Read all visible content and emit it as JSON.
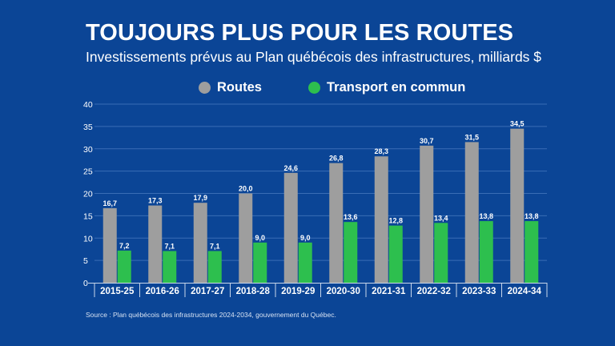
{
  "header": {
    "title": "TOUJOURS PLUS POUR LES ROUTES",
    "subtitle": "Investissements prévus au Plan québécois des infrastructures, milliards $"
  },
  "legend": [
    {
      "label": "Routes",
      "color": "#9e9e9e"
    },
    {
      "label": "Transport en commun",
      "color": "#2dbf4e"
    }
  ],
  "footer": {
    "source": "Source : Plan québécois des infrastructures 2024-2034, gouvernement du Québec."
  },
  "chart_data": {
    "type": "bar",
    "title": "TOUJOURS PLUS POUR LES ROUTES",
    "subtitle": "Investissements prévus au Plan québécois des infrastructures, milliards $",
    "xlabel": "",
    "ylabel": "",
    "ylim": [
      0,
      40
    ],
    "yticks": [
      0,
      5,
      10,
      15,
      20,
      25,
      30,
      35,
      40
    ],
    "grid": true,
    "legend_position": "top-center",
    "categories": [
      "2015-25",
      "2016-26",
      "2017-27",
      "2018-28",
      "2019-29",
      "2020-30",
      "2021-31",
      "2022-32",
      "2023-33",
      "2024-34"
    ],
    "series": [
      {
        "name": "Routes",
        "color": "#9e9e9e",
        "values": [
          16.7,
          17.3,
          17.9,
          20.0,
          24.6,
          26.8,
          28.3,
          30.7,
          31.5,
          34.5
        ],
        "labels": [
          "16,7",
          "17,3",
          "17,9",
          "20,0",
          "24,6",
          "26,8",
          "28,3",
          "30,7",
          "31,5",
          "34,5"
        ]
      },
      {
        "name": "Transport en commun",
        "color": "#2dbf4e",
        "values": [
          7.2,
          7.1,
          7.1,
          9.0,
          9.0,
          13.6,
          12.8,
          13.4,
          13.8,
          13.8
        ],
        "labels": [
          "7,2",
          "7,1",
          "7,1",
          "9,0",
          "9,0",
          "13,6",
          "12,8",
          "13,4",
          "13,8",
          "13,8"
        ]
      }
    ],
    "source": "Source : Plan québécois des infrastructures 2024-2034, gouvernement du Québec."
  }
}
